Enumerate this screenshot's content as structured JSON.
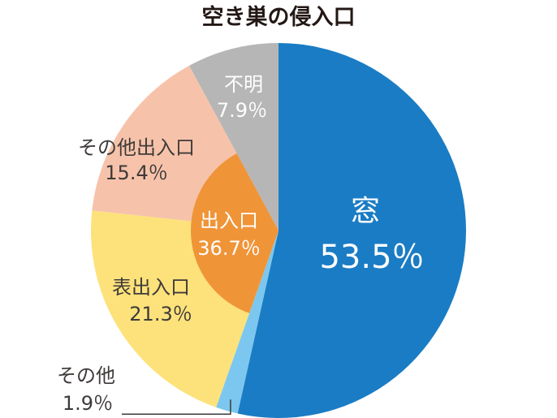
{
  "chart_data": {
    "type": "pie",
    "title": "空き巣の侵入口",
    "slices": [
      {
        "label": "窓",
        "value": 53.5,
        "value_label": "53.5％",
        "color": "#1a7cc4"
      },
      {
        "label": "その他",
        "value": 1.9,
        "value_label": "1.9％",
        "color": "#7cc7ef"
      },
      {
        "label": "表出入口",
        "value": 21.3,
        "value_label": "21.3％",
        "color": "#fde27b"
      },
      {
        "label": "その他出入口",
        "value": 15.4,
        "value_label": "15.4％",
        "color": "#f6c3aa"
      },
      {
        "label": "不明",
        "value": 7.9,
        "value_label": "7.9％",
        "color": "#b6b6b7"
      }
    ],
    "group": {
      "label": "出入口",
      "value": 36.7,
      "value_label": "36.7％",
      "color": "#f09438",
      "slices": [
        "表出入口",
        "その他出入口"
      ]
    }
  }
}
